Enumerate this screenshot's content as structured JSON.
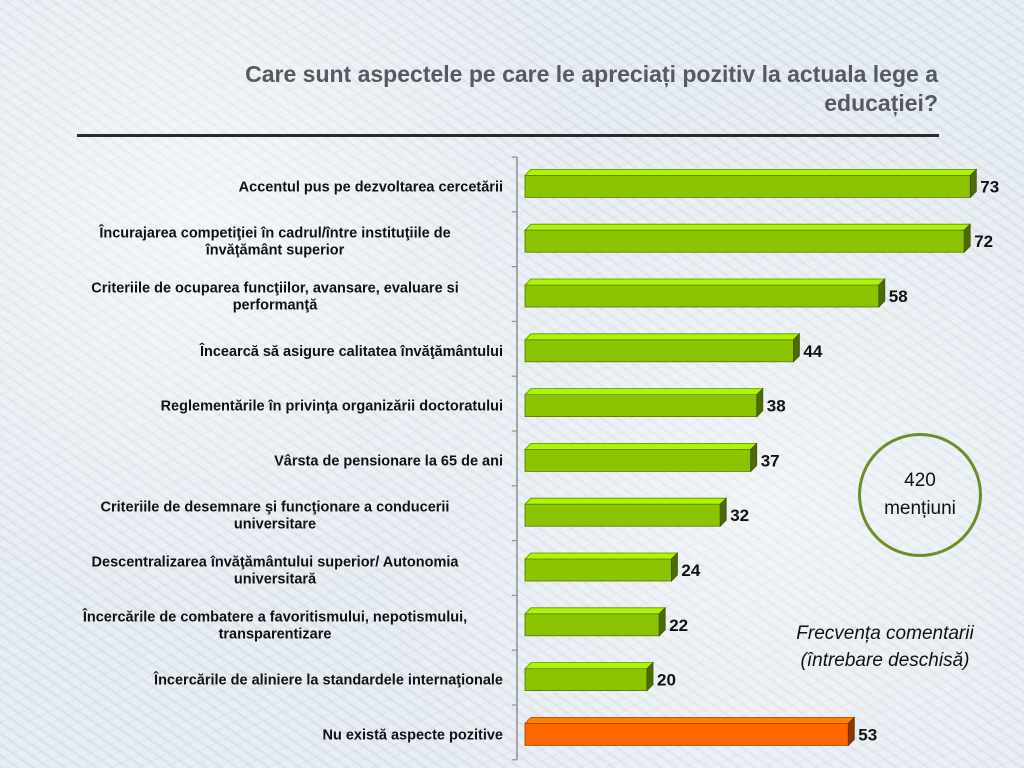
{
  "title": "Care sunt aspectele pe care le apreciați pozitiv la actuala lege a educației?",
  "mentions": {
    "count": "420",
    "label": "mențiuni"
  },
  "note": {
    "line1": "Frecvența comentarii",
    "line2": "(întrebare deschisă)"
  },
  "colors": {
    "bar_default": "#8bc400",
    "bar_highlight": "#ff6600"
  },
  "chart_data": {
    "type": "bar",
    "orientation": "horizontal",
    "categories": [
      [
        "Accentul pus pe dezvoltarea cercetării"
      ],
      [
        "Încurajarea competiţiei în cadrul/între instituţiile de",
        "învăţământ superior"
      ],
      [
        "Criteriile de ocuparea funcţiilor, avansare, evaluare si",
        "performanţă"
      ],
      [
        "Încearcă să asigure calitatea învăţământului"
      ],
      [
        "Reglementările în privinţa organizării doctoratului"
      ],
      [
        "Vârsta de pensionare la 65 de ani"
      ],
      [
        "Criteriile de desemnare şi funcţionare a conducerii",
        "universitare"
      ],
      [
        "Descentralizarea învăţământului superior/ Autonomia",
        "universitară"
      ],
      [
        "Încercările de combatere a favoritismului, nepotismului,",
        "transparentizare"
      ],
      [
        "Încercările de aliniere la standardele internaţionale"
      ],
      [
        "Nu există aspecte pozitive"
      ]
    ],
    "values": [
      73,
      72,
      58,
      44,
      38,
      37,
      32,
      24,
      22,
      20,
      53
    ],
    "highlight_index": 10,
    "xlim": [
      0,
      80
    ],
    "data_labels": true,
    "grid": false,
    "legend": "none",
    "title": "",
    "xlabel": "",
    "ylabel": ""
  }
}
